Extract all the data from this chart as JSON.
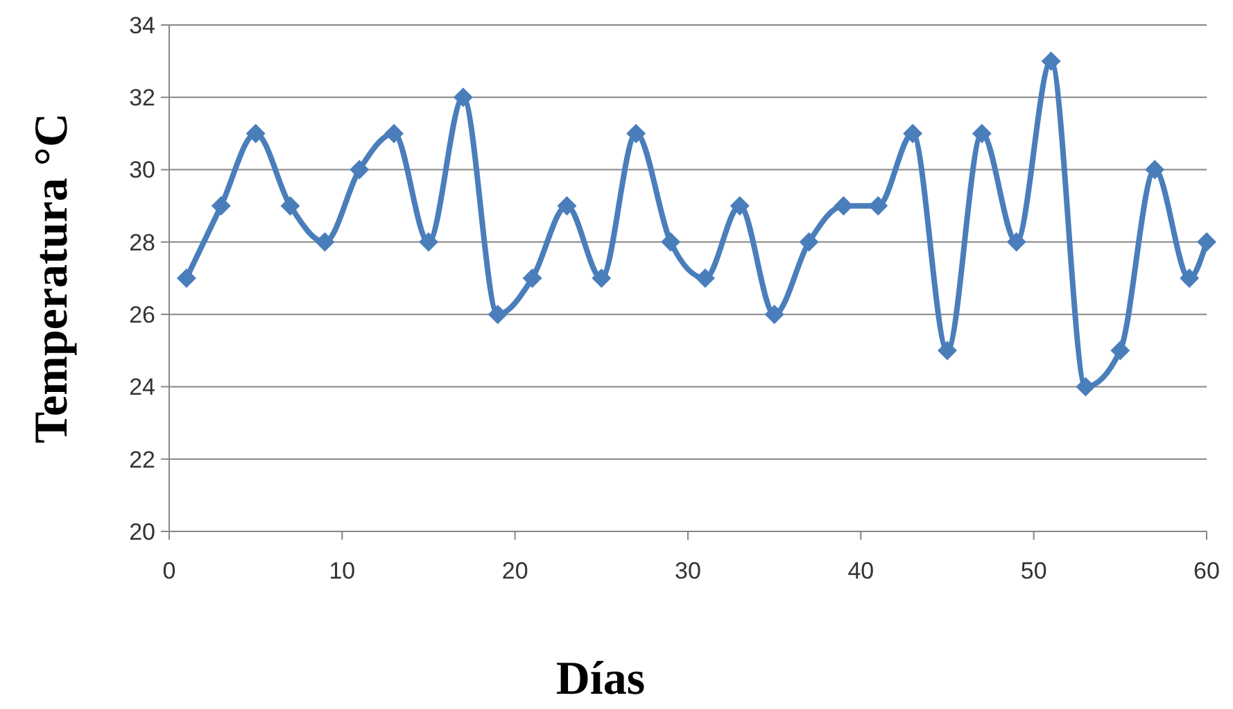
{
  "chart_data": {
    "type": "line",
    "xlabel": "Días",
    "ylabel": "Temperatura °C",
    "x": [
      1,
      3,
      5,
      7,
      9,
      11,
      13,
      15,
      17,
      19,
      21,
      23,
      25,
      27,
      29,
      31,
      33,
      35,
      37,
      39,
      41,
      43,
      45,
      47,
      49,
      51,
      53,
      55,
      57,
      59,
      60
    ],
    "series": [
      {
        "color": "#4a7ebb",
        "values": [
          27,
          29,
          31,
          29,
          28,
          30,
          31,
          28,
          32,
          26,
          27,
          29,
          27,
          31,
          28,
          27,
          29,
          26,
          28,
          29,
          29,
          31,
          25,
          31,
          28,
          33,
          24,
          25,
          30,
          27,
          28
        ]
      }
    ],
    "xlim": [
      0,
      60
    ],
    "xticks": [
      0,
      10,
      20,
      30,
      40,
      50,
      60
    ],
    "ylim": [
      20,
      34
    ],
    "yticks": [
      20,
      22,
      24,
      26,
      28,
      30,
      32,
      34
    ],
    "grid": "y",
    "marker": "diamond",
    "line_style": "solid"
  }
}
